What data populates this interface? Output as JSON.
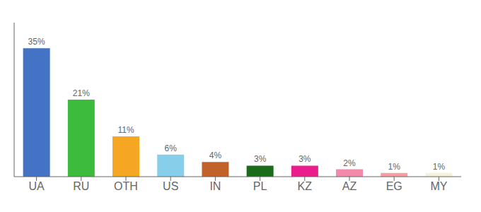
{
  "chart_data": {
    "type": "bar",
    "categories": [
      "UA",
      "RU",
      "OTH",
      "US",
      "IN",
      "PL",
      "KZ",
      "AZ",
      "EG",
      "MY"
    ],
    "values": [
      35,
      21,
      11,
      6,
      4,
      3,
      3,
      2,
      1,
      1
    ],
    "value_labels": [
      "35%",
      "21%",
      "11%",
      "6%",
      "4%",
      "3%",
      "3%",
      "2%",
      "1%",
      "1%"
    ],
    "colors": [
      "#4472c4",
      "#3dbb3d",
      "#f5a623",
      "#87ceeb",
      "#c0622a",
      "#1a6b1a",
      "#e91e8c",
      "#f48aaa",
      "#f4a0a0",
      "#f5f0d8"
    ],
    "ylim": [
      0,
      42
    ],
    "data_labels": true,
    "tick_labels": "x",
    "grid": false
  }
}
